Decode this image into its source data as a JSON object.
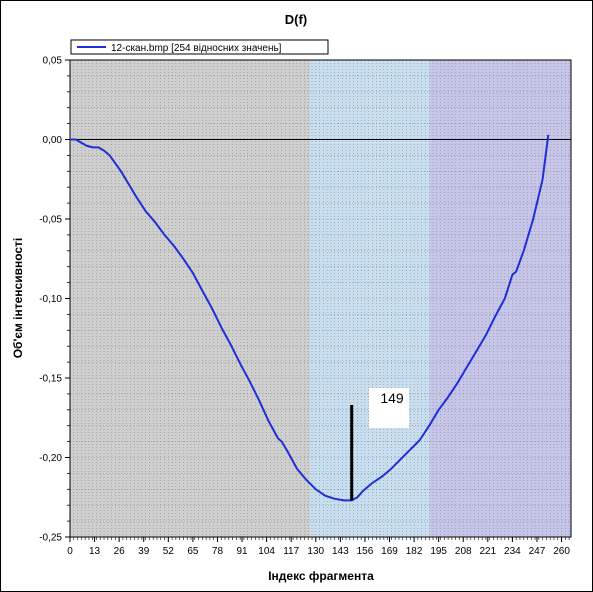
{
  "chart_data": {
    "type": "line",
    "title": "D(f)",
    "xlabel": "Індекс  фрагмента",
    "ylabel": "Об'єм інтенсивності",
    "xlim": [
      0,
      265
    ],
    "ylim": [
      -0.25,
      0.05
    ],
    "xticks": [
      "0",
      "13",
      "26",
      "39",
      "52",
      "65",
      "78",
      "91",
      "104",
      "117",
      "130",
      "143",
      "156",
      "169",
      "182",
      "195",
      "208",
      "221",
      "234",
      "247",
      "260"
    ],
    "xtick_values": [
      0,
      13,
      26,
      39,
      52,
      65,
      78,
      91,
      104,
      117,
      130,
      143,
      156,
      169,
      182,
      195,
      208,
      221,
      234,
      247,
      260
    ],
    "yticks": [
      "0,05",
      "0,00",
      "-0,05",
      "-0,10",
      "-0,15",
      "-0,20",
      "-0,25"
    ],
    "ytick_values": [
      0.05,
      0.0,
      -0.05,
      -0.1,
      -0.15,
      -0.2,
      -0.25
    ],
    "legend": "12-скан.bmp [254 відносних значень]",
    "bands": [
      {
        "x0": 0,
        "x1": 127,
        "color": "#cfcfcf"
      },
      {
        "x0": 127,
        "x1": 190,
        "color": "#c8dff2"
      },
      {
        "x0": 190,
        "x1": 265,
        "color": "#c6c6ea"
      }
    ],
    "marker": {
      "x": 149,
      "y_top": -0.167,
      "y_bottom": -0.227,
      "label": "149"
    },
    "series": [
      {
        "name": "12-скан.bmp [254 відносних значень]",
        "color": "#1f2fd6",
        "x": [
          0,
          3,
          6,
          9,
          12,
          15,
          18,
          21,
          24,
          27,
          30,
          35,
          40,
          45,
          50,
          55,
          60,
          65,
          70,
          75,
          80,
          85,
          90,
          95,
          100,
          105,
          110,
          112,
          115,
          120,
          125,
          130,
          135,
          140,
          145,
          149,
          152,
          155,
          160,
          165,
          170,
          175,
          180,
          185,
          190,
          195,
          200,
          205,
          210,
          215,
          220,
          225,
          230,
          234,
          236,
          240,
          245,
          250,
          253
        ],
        "y": [
          0.0,
          0.0,
          -0.002,
          -0.004,
          -0.005,
          -0.005,
          -0.007,
          -0.01,
          -0.015,
          -0.02,
          -0.026,
          -0.036,
          -0.045,
          -0.052,
          -0.06,
          -0.067,
          -0.075,
          -0.084,
          -0.095,
          -0.106,
          -0.118,
          -0.129,
          -0.141,
          -0.152,
          -0.164,
          -0.177,
          -0.188,
          -0.19,
          -0.196,
          -0.207,
          -0.214,
          -0.22,
          -0.224,
          -0.226,
          -0.227,
          -0.227,
          -0.225,
          -0.221,
          -0.216,
          -0.212,
          -0.207,
          -0.201,
          -0.195,
          -0.189,
          -0.18,
          -0.17,
          -0.162,
          -0.153,
          -0.143,
          -0.133,
          -0.123,
          -0.111,
          -0.1,
          -0.085,
          -0.083,
          -0.07,
          -0.05,
          -0.025,
          0.003
        ]
      }
    ]
  }
}
